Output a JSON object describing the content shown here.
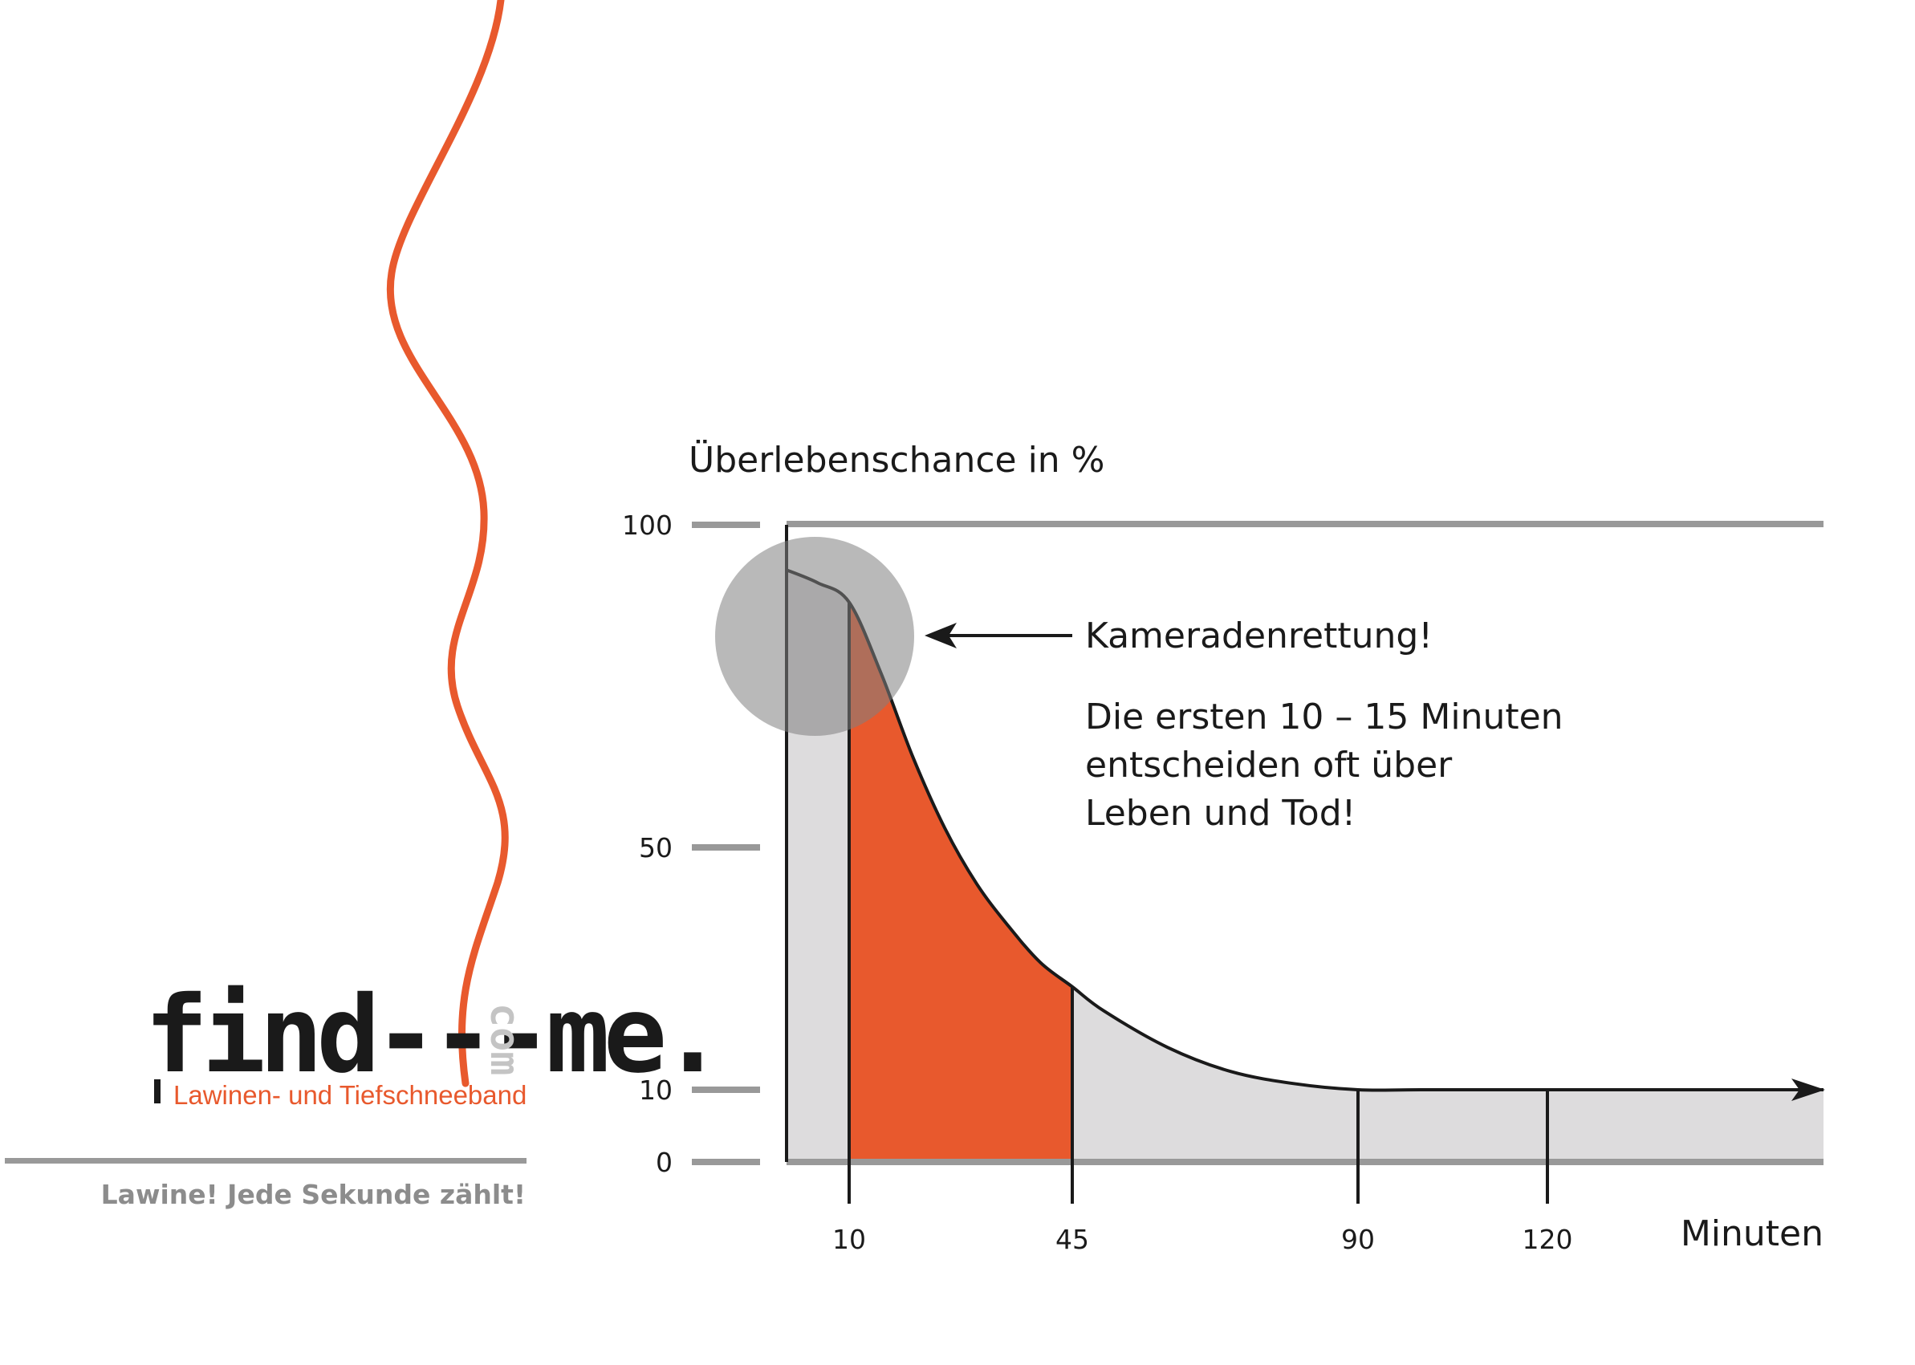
{
  "brand": {
    "logo_text": "find---me.",
    "logo_suffix": "com",
    "tagline": "Lawinen- und Tiefschneeband",
    "slogan": "Lawine! Jede Sekunde zählt!",
    "accent_color": "#e8592d",
    "line_color": "#999999"
  },
  "chart_data": {
    "type": "area",
    "ylabel": "Überlebenschance in %",
    "xlabel": "Minuten",
    "ylim": [
      0,
      100
    ],
    "y_ticks": [
      "100",
      "50",
      "10",
      "0"
    ],
    "x_ticks": [
      "10",
      "45",
      "90",
      "120"
    ],
    "grid": false,
    "series": [
      {
        "x": [
          0,
          5,
          10,
          15,
          20,
          25,
          30,
          35,
          40,
          45,
          50,
          60,
          70,
          80,
          90,
          100,
          120,
          145
        ],
        "y": [
          93,
          91,
          88,
          77,
          64,
          53,
          44,
          37,
          31,
          27,
          23,
          17,
          13,
          11,
          10,
          10,
          10,
          10
        ]
      }
    ],
    "highlight_range": [
      10,
      45
    ],
    "highlight_color": "#e8592d",
    "area_color": "#dddcdd",
    "annotations": {
      "callout_title": "Kameradenrettung!",
      "callout_lines": [
        "Die ersten 10 – 15 Minuten",
        "entscheiden oft über",
        "Leben und Tod!"
      ]
    }
  }
}
